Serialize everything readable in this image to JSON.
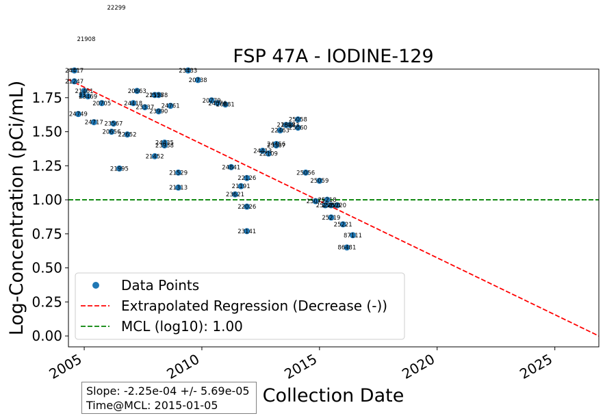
{
  "chart_data": {
    "type": "scatter",
    "title": "FSP 47A - IODINE-129",
    "xlabel": "Collection Date",
    "ylabel": "Log-Concentration (pCi/mL)",
    "x_ticks": [
      "2005",
      "2010",
      "2015",
      "2020",
      "2025"
    ],
    "y_ticks": [
      "0.00",
      "0.25",
      "0.50",
      "0.75",
      "1.00",
      "1.25",
      "1.50",
      "1.75"
    ],
    "xlim": [
      "2004-05-01",
      "2026-11-15"
    ],
    "ylim": [
      -0.08,
      1.96
    ],
    "legend_placement": "lower-left",
    "legend": {
      "points": "Data Points",
      "regression": "Extrapolated Regression (Decrease (-))",
      "mcl": "MCL (log10): 1.00"
    },
    "series": [
      {
        "name": "Data Points",
        "color": "#1f77b4",
        "points": [
          {
            "x": "2004-08-01",
            "y": 1.95,
            "label": "24417"
          },
          {
            "x": "2004-08-01",
            "y": 1.87,
            "label": "21247"
          },
          {
            "x": "2005-01-01",
            "y": 1.8,
            "label": "21461"
          },
          {
            "x": "2004-12-01",
            "y": 1.77,
            "label": "23"
          },
          {
            "x": "2005-03-01",
            "y": 1.76,
            "label": "23469"
          },
          {
            "x": "2004-10-01",
            "y": 1.63,
            "label": "24749"
          },
          {
            "x": "2005-10-01",
            "y": 1.71,
            "label": "20705"
          },
          {
            "x": "2005-06-01",
            "y": 1.57,
            "label": "24717"
          },
          {
            "x": "2006-04-01",
            "y": 1.56,
            "label": "23567"
          },
          {
            "x": "2006-03-01",
            "y": 1.5,
            "label": "20656"
          },
          {
            "x": "2006-11-01",
            "y": 1.48,
            "label": "22652"
          },
          {
            "x": "2006-07-01",
            "y": 1.23,
            "label": "21995"
          },
          {
            "x": "2007-04-01",
            "y": 1.8,
            "label": "20663"
          },
          {
            "x": "2008-01-01",
            "y": 1.77,
            "label": "21578"
          },
          {
            "x": "2008-03-01",
            "y": 1.77,
            "label": "21578"
          },
          {
            "x": "2007-02-01",
            "y": 1.71,
            "label": "24418"
          },
          {
            "x": "2007-08-01",
            "y": 1.68,
            "label": "23337"
          },
          {
            "x": "2008-03-01",
            "y": 1.65,
            "label": "23990"
          },
          {
            "x": "2008-09-01",
            "y": 1.69,
            "label": "24761"
          },
          {
            "x": "2008-01-01",
            "y": 1.32,
            "label": "21452"
          },
          {
            "x": "2008-06-01",
            "y": 1.42,
            "label": "24435"
          },
          {
            "x": "2008-06-01",
            "y": 1.4,
            "label": "23938"
          },
          {
            "x": "2009-01-01",
            "y": 1.2,
            "label": "21529"
          },
          {
            "x": "2009-01-01",
            "y": 1.09,
            "label": "21313"
          },
          {
            "x": "2009-06-01",
            "y": 1.95,
            "label": "23433"
          },
          {
            "x": "2009-11-01",
            "y": 1.88,
            "label": "20738"
          },
          {
            "x": "2010-06-01",
            "y": 1.73,
            "label": "20779"
          },
          {
            "x": "2010-09-01",
            "y": 1.71,
            "label": "24076"
          },
          {
            "x": "2011-01-01",
            "y": 1.7,
            "label": "20881"
          },
          {
            "x": "2011-04-01",
            "y": 1.24,
            "label": "24841"
          },
          {
            "x": "2011-12-01",
            "y": 1.16,
            "label": "22126"
          },
          {
            "x": "2011-09-01",
            "y": 1.1,
            "label": "21191"
          },
          {
            "x": "2011-06-01",
            "y": 1.04,
            "label": "23621"
          },
          {
            "x": "2011-12-01",
            "y": 0.95,
            "label": "22026"
          },
          {
            "x": "2011-12-01",
            "y": 0.77,
            "label": "23141"
          },
          {
            "x": "2012-08-01",
            "y": 1.36,
            "label": "24413"
          },
          {
            "x": "2012-11-01",
            "y": 1.34,
            "label": "22109"
          },
          {
            "x": "2013-03-01",
            "y": 1.41,
            "label": "24456"
          },
          {
            "x": "2013-03-01",
            "y": 1.4,
            "label": "23367"
          },
          {
            "x": "2013-05-01",
            "y": 1.51,
            "label": "22463"
          },
          {
            "x": "2013-08-01",
            "y": 1.55,
            "label": "21687"
          },
          {
            "x": "2013-10-01",
            "y": 1.55,
            "label": "23083"
          },
          {
            "x": "2014-02-01",
            "y": 1.59,
            "label": "25058"
          },
          {
            "x": "2014-02-01",
            "y": 1.53,
            "label": "25060"
          },
          {
            "x": "2014-06-01",
            "y": 1.2,
            "label": "25056"
          },
          {
            "x": "2015-01-01",
            "y": 1.14,
            "label": "25059"
          },
          {
            "x": "2014-11-01",
            "y": 0.99,
            "label": "25077"
          },
          {
            "x": "2015-05-01",
            "y": 1.0,
            "label": "25218"
          },
          {
            "x": "2015-04-01",
            "y": 0.96,
            "label": "25220"
          },
          {
            "x": "2015-07-01",
            "y": 0.96,
            "label": "25220"
          },
          {
            "x": "2015-10-01",
            "y": 0.96,
            "label": "25220"
          },
          {
            "x": "2015-07-01",
            "y": 0.87,
            "label": "25219"
          },
          {
            "x": "2016-01-01",
            "y": 0.82,
            "label": "25221"
          },
          {
            "x": "2016-06-01",
            "y": 0.74,
            "label": "87111"
          },
          {
            "x": "2016-03-01",
            "y": 0.65,
            "label": "86481"
          }
        ]
      }
    ],
    "offscale_labels": [
      {
        "text": "22299",
        "x": "2006-05-15"
      },
      {
        "text": "21908",
        "x": "2005-02-01"
      }
    ],
    "regression": {
      "color": "#ff0000",
      "style": "dashed",
      "points": [
        {
          "x": "2004-05-01",
          "y": 1.883
        },
        {
          "x": "2026-11-15",
          "y": 0.0
        }
      ]
    },
    "mcl": {
      "y": 1.0,
      "color": "#008000",
      "style": "dashed"
    },
    "grid": false,
    "annotation": {
      "line1": "Slope: -2.25e-04 +/- 5.69e-05",
      "line2": "Time@MCL: 2015-01-05"
    }
  }
}
